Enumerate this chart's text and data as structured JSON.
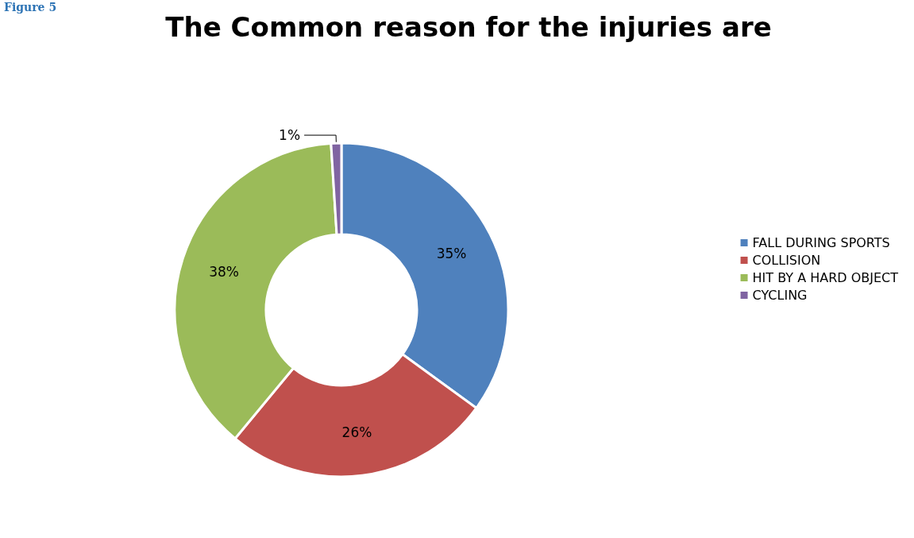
{
  "chart_data": {
    "type": "donut",
    "title": "The Common reason for the injuries are",
    "categories": [
      "FALL DURING SPORTS",
      "COLLISION",
      "HIT BY A HARD OBJECT",
      "CYCLING"
    ],
    "values": [
      35,
      26,
      38,
      1
    ],
    "value_labels": [
      "35%",
      "26%",
      "38%",
      "1%"
    ],
    "colors": [
      "#4f81bd",
      "#c0504d",
      "#9bbb59",
      "#8064a2"
    ],
    "legend": "right",
    "annotations": [
      "Figure 5"
    ]
  }
}
